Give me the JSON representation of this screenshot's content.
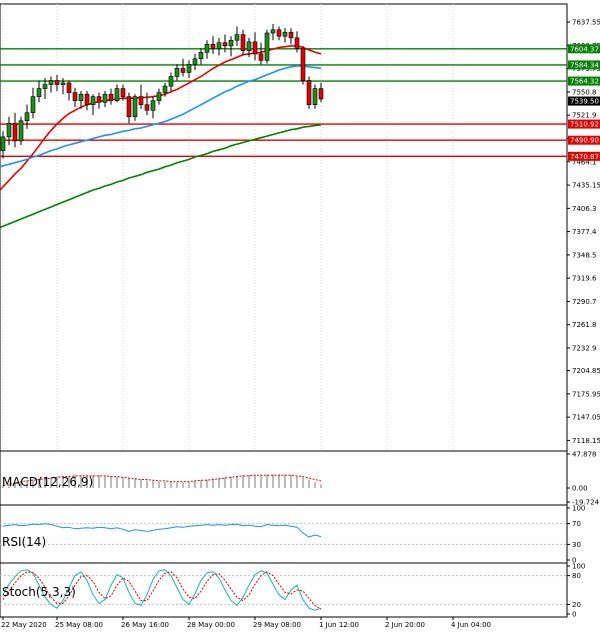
{
  "chart_data": {
    "type": "candlestick",
    "instrument_title": "",
    "price_axis": {
      "range": [
        7105,
        7660
      ],
      "ticks": [
        7637.55,
        7608.75,
        7579.75,
        7550.8,
        7521.9,
        7493.1,
        7464.1,
        7435.15,
        7406.3,
        7377.4,
        7348.5,
        7319.6,
        7290.7,
        7261.8,
        7232.9,
        7204.85,
        7175.95,
        7147.05,
        7118.15
      ]
    },
    "time_labels": [
      {
        "label": "22 May 2020",
        "index": 0
      },
      {
        "label": "25 May 08:00",
        "index": 9
      },
      {
        "label": "26 May 16:00",
        "index": 20
      },
      {
        "label": "28 May 00:00",
        "index": 31
      },
      {
        "label": "29 May 08:00",
        "index": 42
      },
      {
        "label": "1 Jun 12:00",
        "index": 53
      },
      {
        "label": "2 Jun 20:00",
        "index": 64
      },
      {
        "label": "4 Jun 04:00",
        "index": 75
      }
    ],
    "candles": [
      {
        "o": 7478,
        "h": 7502,
        "l": 7468,
        "c": 7495
      },
      {
        "o": 7495,
        "h": 7520,
        "l": 7485,
        "c": 7512
      },
      {
        "o": 7512,
        "h": 7525,
        "l": 7482,
        "c": 7490
      },
      {
        "o": 7490,
        "h": 7520,
        "l": 7485,
        "c": 7515
      },
      {
        "o": 7515,
        "h": 7535,
        "l": 7505,
        "c": 7525
      },
      {
        "o": 7525,
        "h": 7556,
        "l": 7518,
        "c": 7545
      },
      {
        "o": 7545,
        "h": 7565,
        "l": 7538,
        "c": 7555
      },
      {
        "o": 7555,
        "h": 7568,
        "l": 7542,
        "c": 7560
      },
      {
        "o": 7560,
        "h": 7570,
        "l": 7550,
        "c": 7565
      },
      {
        "o": 7565,
        "h": 7572,
        "l": 7552,
        "c": 7560
      },
      {
        "o": 7560,
        "h": 7568,
        "l": 7548,
        "c": 7562
      },
      {
        "o": 7562,
        "h": 7565,
        "l": 7540,
        "c": 7550
      },
      {
        "o": 7550,
        "h": 7556,
        "l": 7532,
        "c": 7540
      },
      {
        "o": 7540,
        "h": 7552,
        "l": 7530,
        "c": 7548
      },
      {
        "o": 7548,
        "h": 7552,
        "l": 7528,
        "c": 7535
      },
      {
        "o": 7535,
        "h": 7548,
        "l": 7522,
        "c": 7545
      },
      {
        "o": 7545,
        "h": 7550,
        "l": 7530,
        "c": 7538
      },
      {
        "o": 7538,
        "h": 7552,
        "l": 7532,
        "c": 7548
      },
      {
        "o": 7548,
        "h": 7555,
        "l": 7535,
        "c": 7540
      },
      {
        "o": 7540,
        "h": 7560,
        "l": 7538,
        "c": 7555
      },
      {
        "o": 7555,
        "h": 7560,
        "l": 7540,
        "c": 7545
      },
      {
        "o": 7545,
        "h": 7550,
        "l": 7512,
        "c": 7520
      },
      {
        "o": 7520,
        "h": 7548,
        "l": 7515,
        "c": 7545
      },
      {
        "o": 7545,
        "h": 7560,
        "l": 7530,
        "c": 7535
      },
      {
        "o": 7535,
        "h": 7550,
        "l": 7522,
        "c": 7528
      },
      {
        "o": 7528,
        "h": 7545,
        "l": 7518,
        "c": 7540
      },
      {
        "o": 7540,
        "h": 7555,
        "l": 7535,
        "c": 7550
      },
      {
        "o": 7550,
        "h": 7562,
        "l": 7545,
        "c": 7558
      },
      {
        "o": 7558,
        "h": 7575,
        "l": 7552,
        "c": 7570
      },
      {
        "o": 7570,
        "h": 7585,
        "l": 7565,
        "c": 7580
      },
      {
        "o": 7580,
        "h": 7592,
        "l": 7570,
        "c": 7575
      },
      {
        "o": 7575,
        "h": 7590,
        "l": 7568,
        "c": 7585
      },
      {
        "o": 7585,
        "h": 7598,
        "l": 7578,
        "c": 7592
      },
      {
        "o": 7592,
        "h": 7605,
        "l": 7585,
        "c": 7600
      },
      {
        "o": 7600,
        "h": 7615,
        "l": 7592,
        "c": 7610
      },
      {
        "o": 7610,
        "h": 7620,
        "l": 7598,
        "c": 7605
      },
      {
        "o": 7605,
        "h": 7618,
        "l": 7596,
        "c": 7612
      },
      {
        "o": 7612,
        "h": 7622,
        "l": 7600,
        "c": 7608
      },
      {
        "o": 7608,
        "h": 7620,
        "l": 7595,
        "c": 7615
      },
      {
        "o": 7615,
        "h": 7632,
        "l": 7608,
        "c": 7622
      },
      {
        "o": 7622,
        "h": 7628,
        "l": 7596,
        "c": 7602
      },
      {
        "o": 7602,
        "h": 7618,
        "l": 7594,
        "c": 7613
      },
      {
        "o": 7613,
        "h": 7625,
        "l": 7590,
        "c": 7598
      },
      {
        "o": 7598,
        "h": 7612,
        "l": 7585,
        "c": 7590
      },
      {
        "o": 7590,
        "h": 7628,
        "l": 7586,
        "c": 7624
      },
      {
        "o": 7624,
        "h": 7635,
        "l": 7615,
        "c": 7628
      },
      {
        "o": 7628,
        "h": 7632,
        "l": 7615,
        "c": 7620
      },
      {
        "o": 7620,
        "h": 7630,
        "l": 7612,
        "c": 7625
      },
      {
        "o": 7625,
        "h": 7630,
        "l": 7610,
        "c": 7618
      },
      {
        "o": 7618,
        "h": 7626,
        "l": 7600,
        "c": 7605
      },
      {
        "o": 7605,
        "h": 7608,
        "l": 7560,
        "c": 7565
      },
      {
        "o": 7565,
        "h": 7570,
        "l": 7530,
        "c": 7535
      },
      {
        "o": 7535,
        "h": 7560,
        "l": 7530,
        "c": 7555
      },
      {
        "o": 7555,
        "h": 7562,
        "l": 7538,
        "c": 7542
      }
    ],
    "series": [
      {
        "type": "line",
        "color": "#e00000",
        "values": [
          7433,
          7441,
          7449,
          7456,
          7465,
          7474,
          7484,
          7494,
          7503,
          7511,
          7518,
          7524,
          7528,
          7532,
          7535,
          7537,
          7539,
          7540,
          7541,
          7542,
          7543,
          7543,
          7543,
          7544,
          7544,
          7545,
          7546,
          7548,
          7551,
          7554,
          7558,
          7562,
          7566,
          7570,
          7575,
          7580,
          7584,
          7588,
          7591,
          7594,
          7597,
          7598,
          7599,
          7600,
          7602,
          7604,
          7606,
          7607,
          7608,
          7608,
          7606,
          7603,
          7600,
          7598
        ]
      },
      {
        "type": "line",
        "color": "#1e90ff",
        "values": [
          7459,
          7461,
          7463,
          7465,
          7467,
          7470,
          7472,
          7475,
          7478,
          7480,
          7483,
          7485,
          7487,
          7489,
          7491,
          7493,
          7495,
          7497,
          7498,
          7500,
          7502,
          7503,
          7505,
          7506,
          7508,
          7510,
          7512,
          7514,
          7517,
          7520,
          7523,
          7527,
          7531,
          7535,
          7539,
          7543,
          7547,
          7551,
          7554,
          7558,
          7561,
          7564,
          7566,
          7569,
          7572,
          7575,
          7578,
          7580,
          7582,
          7583,
          7583,
          7582,
          7581,
          7580
        ]
      },
      {
        "type": "line",
        "color": "#008000",
        "values": [
          7384,
          7387,
          7390,
          7393,
          7396,
          7399,
          7402,
          7405,
          7408,
          7411,
          7414,
          7417,
          7420,
          7423,
          7426,
          7429,
          7431,
          7434,
          7436,
          7439,
          7441,
          7444,
          7446,
          7448,
          7451,
          7453,
          7455,
          7458,
          7460,
          7463,
          7465,
          7467,
          7470,
          7472,
          7474,
          7477,
          7479,
          7481,
          7484,
          7486,
          7488,
          7490,
          7492,
          7494,
          7496,
          7498,
          7500,
          7502,
          7504,
          7505,
          7507,
          7508,
          7509,
          7510
        ]
      }
    ],
    "horizontal_levels": [
      {
        "label": "7604.37",
        "value": 7604.37,
        "color": "#008000"
      },
      {
        "label": "7584.34",
        "value": 7584.34,
        "color": "#008000"
      },
      {
        "label": "7564.32",
        "value": 7564.32,
        "color": "#008000"
      },
      {
        "label": "7539.50",
        "value": 7539.5,
        "color": "#000000"
      },
      {
        "label": "7510.92",
        "value": 7510.92,
        "color": "#e00000"
      },
      {
        "label": "7490.90",
        "value": 7490.9,
        "color": "#e00000"
      },
      {
        "label": "7470.87",
        "value": 7470.87,
        "color": "#e00000"
      }
    ],
    "indicators": [
      {
        "label": "MACD(12,26,9)",
        "range": [
          -19.724,
          47.878
        ],
        "ticks": [
          "47.878",
          "0.00",
          "-19.724"
        ],
        "histogram": [
          4,
          6,
          8,
          10,
          11,
          12,
          13,
          14,
          15,
          16,
          17,
          17,
          18,
          18,
          18,
          18,
          18,
          17,
          17,
          16,
          15,
          14,
          13,
          12,
          11,
          10,
          9,
          9,
          8,
          8,
          8,
          9,
          10,
          11,
          12,
          13,
          14,
          15,
          16,
          17,
          18,
          18,
          19,
          19,
          19,
          19,
          19,
          19,
          18,
          17,
          15,
          12,
          8,
          5
        ],
        "signal": [
          3,
          5,
          7,
          9,
          10,
          11,
          12,
          13,
          14,
          15,
          16,
          16,
          17,
          17,
          17,
          17,
          17,
          17,
          16,
          16,
          15,
          14,
          13,
          12,
          12,
          11,
          10,
          10,
          9,
          9,
          9,
          9,
          10,
          11,
          11,
          12,
          13,
          14,
          15,
          16,
          17,
          17,
          18,
          18,
          18,
          18,
          18,
          18,
          18,
          17,
          16,
          14,
          12,
          10
        ]
      },
      {
        "label": "RSI(14)",
        "range": [
          0,
          100
        ],
        "ticks": [
          "100",
          "70",
          "30",
          "0"
        ],
        "values": [
          65,
          67,
          68,
          66,
          67,
          69,
          68,
          70,
          68,
          65,
          62,
          63,
          60,
          61,
          62,
          61,
          63,
          62,
          60,
          62,
          59,
          55,
          58,
          57,
          55,
          57,
          59,
          60,
          62,
          64,
          63,
          65,
          66,
          67,
          68,
          67,
          68,
          67,
          68,
          69,
          66,
          67,
          65,
          64,
          68,
          67,
          66,
          67,
          65,
          63,
          52,
          44,
          48,
          45
        ]
      },
      {
        "label": "Stoch(5,3,3)",
        "range": [
          0,
          100
        ],
        "ticks": [
          "100",
          "80",
          "20",
          "0"
        ],
        "k": [
          40,
          62,
          78,
          90,
          92,
          85,
          60,
          35,
          20,
          12,
          28,
          55,
          80,
          88,
          70,
          40,
          22,
          30,
          60,
          82,
          75,
          45,
          22,
          18,
          40,
          72,
          90,
          92,
          80,
          55,
          30,
          20,
          42,
          70,
          86,
          88,
          75,
          50,
          28,
          18,
          35,
          60,
          82,
          90,
          85,
          62,
          40,
          30,
          50,
          60,
          30,
          12,
          8,
          12
        ],
        "d": [
          30,
          48,
          65,
          80,
          88,
          86,
          75,
          55,
          35,
          22,
          22,
          38,
          60,
          78,
          80,
          68,
          45,
          32,
          38,
          60,
          75,
          68,
          48,
          28,
          28,
          48,
          70,
          85,
          88,
          75,
          52,
          35,
          32,
          48,
          68,
          82,
          84,
          70,
          52,
          35,
          28,
          40,
          62,
          80,
          88,
          80,
          62,
          45,
          42,
          50,
          48,
          32,
          18,
          10
        ]
      }
    ]
  }
}
